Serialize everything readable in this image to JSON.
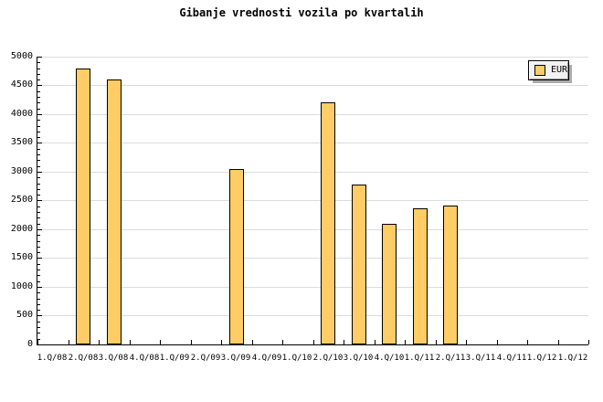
{
  "title": "Gibanje vrednosti vozila po kvartalih",
  "legend": {
    "label": "EUR"
  },
  "colors": {
    "background": "#FFFFFF",
    "bar_fill": "#FFCC66",
    "bar_border": "#000000",
    "gridline": "#DCDCDC",
    "axis": "#000000",
    "legend_bg": "#F2F2F2",
    "legend_shadow": "#ABABAB"
  },
  "chart_data": {
    "type": "bar",
    "title": "Gibanje vrednosti vozila po kvartalih",
    "categories": [
      "1.Q/08",
      "2.Q/08",
      "3.Q/08",
      "4.Q/08",
      "1.Q/09",
      "2.Q/09",
      "3.Q/09",
      "4.Q/09",
      "1.Q/10",
      "2.Q/10",
      "3.Q/10",
      "4.Q/10",
      "1.Q/11",
      "2.Q/11",
      "3.Q/11",
      "4.Q/11",
      "1.Q/12",
      "1.Q/12"
    ],
    "series": [
      {
        "name": "EUR",
        "values": [
          null,
          4800,
          4600,
          null,
          null,
          null,
          3050,
          null,
          null,
          4200,
          2770,
          2100,
          2360,
          2420,
          null,
          null,
          null,
          null
        ]
      }
    ],
    "xlabel": "",
    "ylabel": "",
    "ylim": [
      0,
      5000
    ],
    "ytick_step": 500,
    "y_minor_step": 100,
    "grid": true,
    "legend_position": "top-right"
  }
}
